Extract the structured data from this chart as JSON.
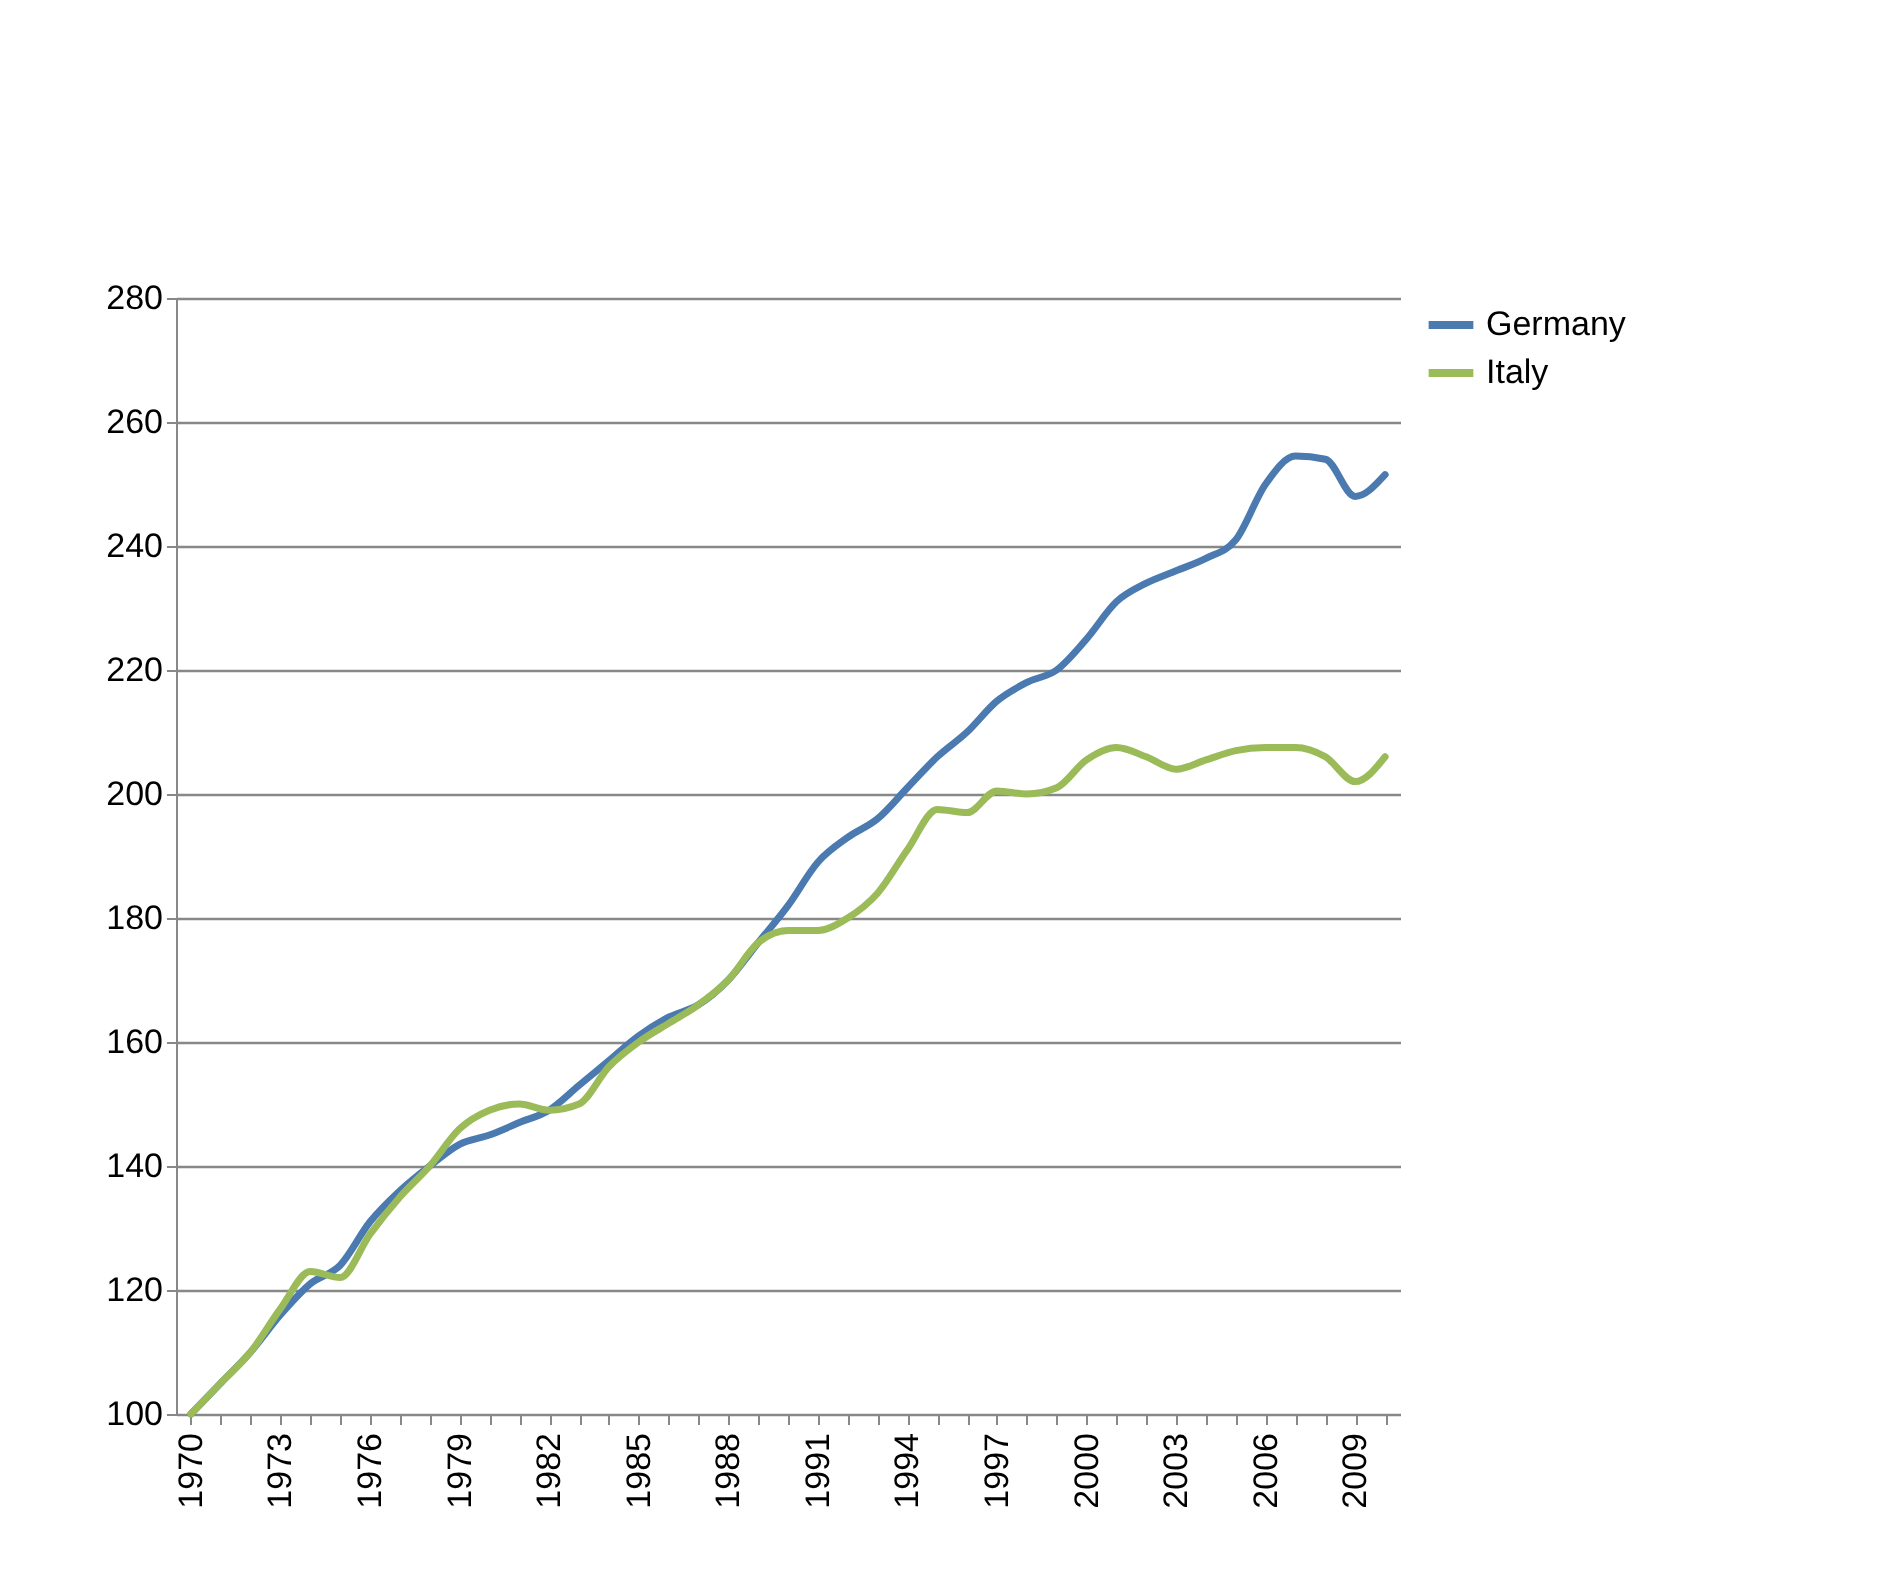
{
  "chart_data": {
    "type": "line",
    "categories": [
      "1970",
      null,
      null,
      "1973",
      null,
      null,
      "1976",
      null,
      null,
      "1979",
      null,
      null,
      "1982",
      null,
      null,
      "1985",
      null,
      null,
      "1988",
      null,
      null,
      "1991",
      null,
      null,
      "1994",
      null,
      null,
      "1997",
      null,
      null,
      "2000",
      null,
      null,
      "2003",
      null,
      null,
      "2006",
      null,
      null,
      "2009",
      null
    ],
    "series": [
      {
        "name": "Germany",
        "color": "#4a7ab0",
        "values": [
          100,
          105,
          110,
          116,
          121,
          124,
          131,
          136,
          140,
          143.5,
          145,
          147,
          149,
          153,
          157,
          161,
          164,
          166,
          170,
          176,
          182,
          189,
          193,
          196,
          201,
          206,
          210,
          215,
          218,
          220,
          225,
          231,
          234,
          236,
          238,
          241,
          250,
          254.5,
          254,
          248,
          251.5
        ]
      },
      {
        "name": "Italy",
        "color": "#9bbb59",
        "values": [
          100,
          105,
          110,
          117,
          123,
          122,
          129,
          135,
          140,
          146,
          149,
          150,
          149,
          150,
          156,
          160,
          163,
          166,
          170,
          176,
          178,
          178,
          180,
          184,
          191,
          197.5,
          197,
          200.5,
          200,
          201,
          205.5,
          207.5,
          206,
          204,
          205.5,
          207,
          207.5,
          207.5,
          206,
          202,
          206
        ]
      }
    ],
    "ylim": [
      100,
      280
    ],
    "yticks": [
      100,
      120,
      140,
      160,
      180,
      200,
      220,
      240,
      260,
      280
    ],
    "grid": "y",
    "legend": "right",
    "marker": "none",
    "line_style": "solid"
  }
}
